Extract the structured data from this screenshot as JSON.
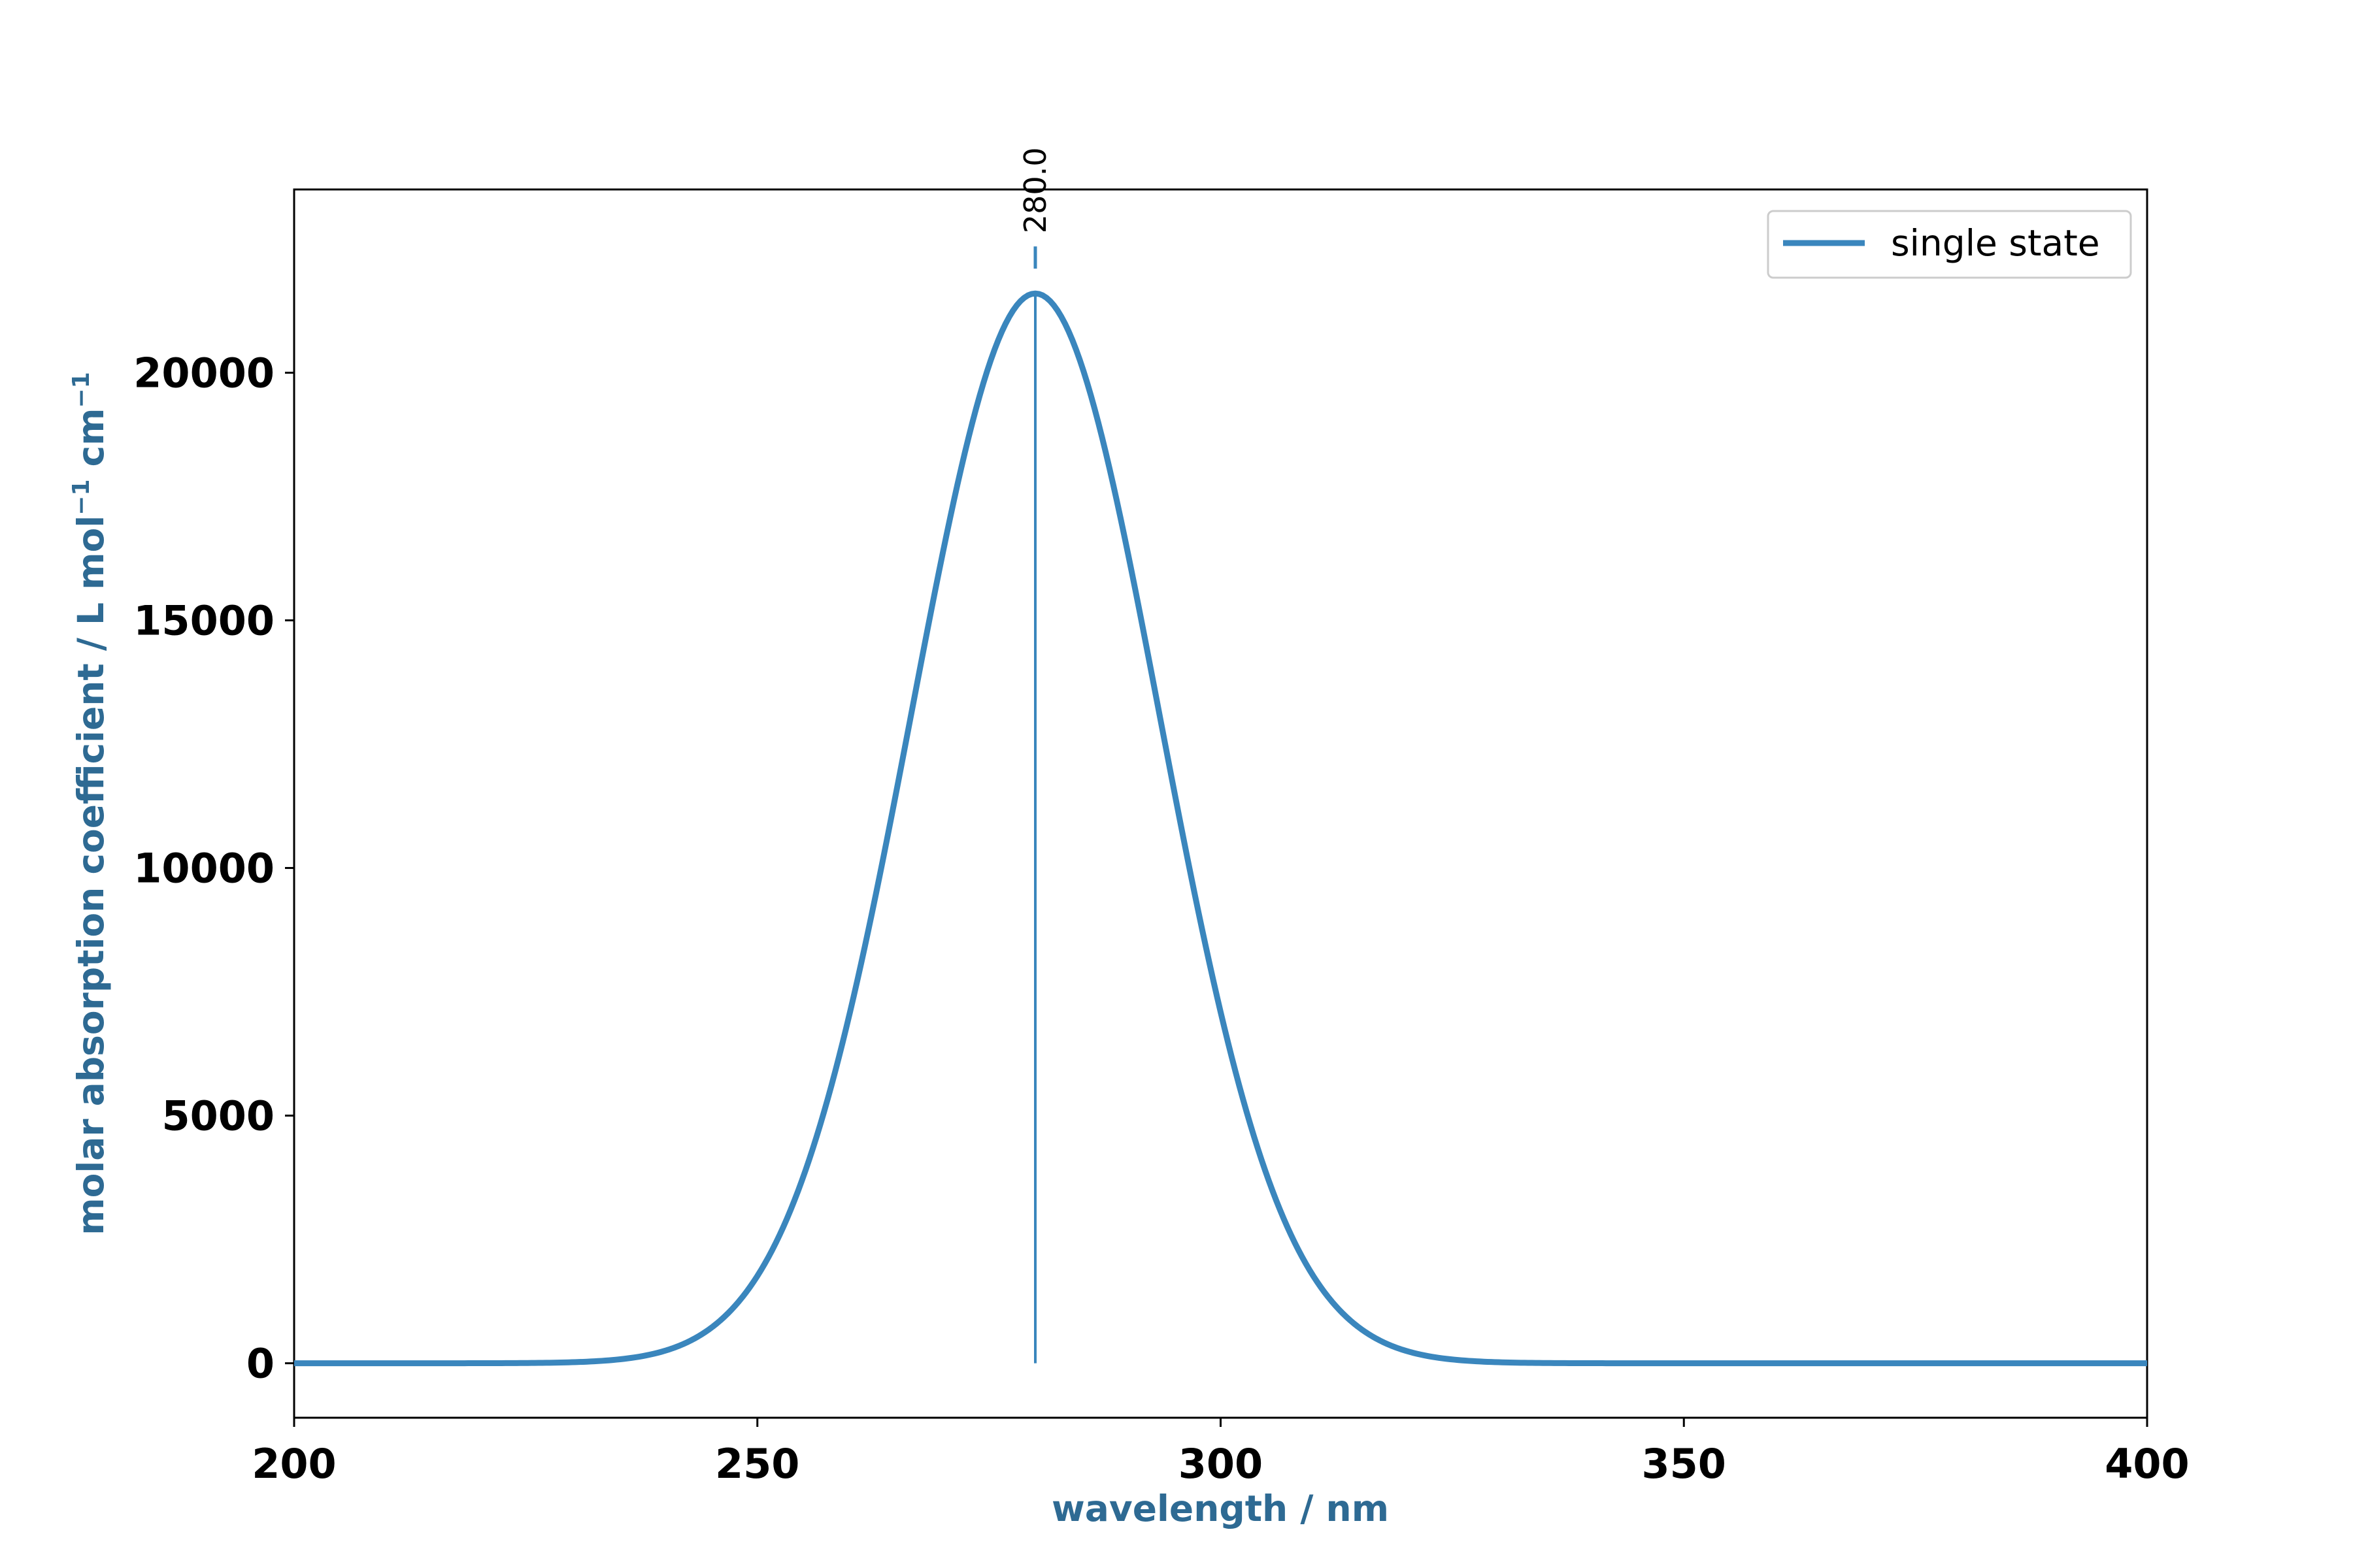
{
  "chart_data": {
    "type": "line",
    "title": "",
    "xlabel": "wavelength / nm",
    "ylabel_main": "molar absorption coefficient / L mol",
    "ylabel_sup1": "−1",
    "ylabel_mid": " cm",
    "ylabel_sup2": "−1",
    "xlim": [
      200,
      400
    ],
    "ylim": [
      -1100,
      23700
    ],
    "xticks": [
      200,
      250,
      300,
      350,
      400
    ],
    "yticks": [
      0,
      5000,
      10000,
      15000,
      20000
    ],
    "xtick_labels": [
      "200",
      "250",
      "300",
      "350",
      "400"
    ],
    "ytick_labels": [
      "0",
      "5000",
      "10000",
      "15000",
      "20000"
    ],
    "grid": false,
    "legend_position": "top-right",
    "series": [
      {
        "name": "single state",
        "kind": "gaussian",
        "center": 280.0,
        "peak": 21600,
        "sigma": 13.4,
        "color": "#3a86bd"
      }
    ],
    "sticks": [
      {
        "x": 280.0,
        "y": 21600,
        "label": "280.0",
        "color": "#3a86bd"
      }
    ],
    "label_color": "#2e6a93",
    "line_color": "#3a86bd"
  }
}
